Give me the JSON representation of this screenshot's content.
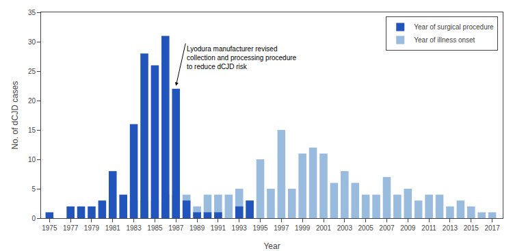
{
  "chart_data": {
    "type": "bar",
    "x": [
      1975,
      1976,
      1977,
      1978,
      1979,
      1980,
      1981,
      1982,
      1983,
      1984,
      1985,
      1986,
      1987,
      1988,
      1989,
      1990,
      1991,
      1992,
      1993,
      1994,
      1995,
      1996,
      1997,
      1998,
      1999,
      2000,
      2001,
      2002,
      2003,
      2004,
      2005,
      2006,
      2007,
      2008,
      2009,
      2010,
      2011,
      2012,
      2013,
      2014,
      2015,
      2016,
      2017
    ],
    "series": [
      {
        "name": "Year of illness onset",
        "color": "#99bbdd",
        "values": [
          0,
          0,
          0,
          0,
          0,
          0,
          0,
          0,
          3,
          3,
          3,
          4,
          4,
          4,
          2,
          4,
          4,
          4,
          5,
          3,
          10,
          5,
          15,
          5,
          11,
          12,
          11,
          6,
          8,
          6,
          4,
          4,
          7,
          4,
          5,
          3,
          4,
          4,
          2,
          3,
          2,
          1,
          1
        ]
      },
      {
        "name": "Year of surgical procedure",
        "color": "#2255bb",
        "values": [
          1,
          0,
          2,
          2,
          2,
          3,
          8,
          4,
          16,
          28,
          26,
          31,
          22,
          3,
          1,
          1,
          1,
          0,
          2,
          3,
          0,
          0,
          0,
          0,
          0,
          0,
          0,
          0,
          0,
          0,
          0,
          0,
          0,
          0,
          0,
          0,
          0,
          0,
          0,
          0,
          0,
          0,
          0
        ]
      }
    ],
    "xlabel": "Year",
    "ylabel": "No. of dCJD cases",
    "xlim": [
      1974.2,
      2018.0
    ],
    "xticks": [
      1975,
      1977,
      1979,
      1981,
      1983,
      1985,
      1987,
      1989,
      1991,
      1993,
      1995,
      1997,
      1999,
      2001,
      2003,
      2005,
      2007,
      2009,
      2011,
      2013,
      2015,
      2017
    ],
    "ylim": [
      0,
      35
    ],
    "yticks": [
      0,
      5,
      10,
      15,
      20,
      25,
      30,
      35
    ],
    "annotations": [
      {
        "text": "Lyodura manufacturer revised\ncollection and processing procedure\nto reduce dCJD risk",
        "x": 1987,
        "y": 22.5
      }
    ],
    "legend": "upper right",
    "grid": false
  }
}
